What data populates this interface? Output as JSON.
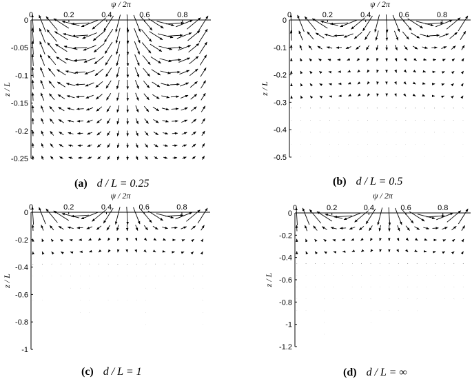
{
  "chart_data": [
    {
      "type": "quiver",
      "panel": "a",
      "caption_letter": "(a)",
      "caption_expr": "d / L = 0.25",
      "xlabel": "ψ / 2π",
      "ylabel": "z / L",
      "xlim": [
        0,
        0.95
      ],
      "ylim": [
        -0.25,
        0
      ],
      "xticks": [
        "0",
        "0.2",
        "0.4",
        "0.6",
        "0.8"
      ],
      "yticks": [
        "0",
        "-0.05",
        "-0.1",
        "-0.15",
        "-0.2",
        "-0.25"
      ],
      "xtick_values": [
        0,
        0.2,
        0.4,
        0.6,
        0.8
      ],
      "ytick_values": [
        0,
        -0.05,
        -0.1,
        -0.15,
        -0.2,
        -0.25
      ],
      "decay": "weak",
      "grid": false
    },
    {
      "type": "quiver",
      "panel": "b",
      "caption_letter": "(b)",
      "caption_expr": "d / L = 0.5",
      "xlabel": "ψ / 2π",
      "ylabel": "z / L",
      "xlim": [
        0,
        0.95
      ],
      "ylim": [
        -0.5,
        0
      ],
      "xticks": [
        "0",
        "0.2",
        "0.4",
        "0.6",
        "0.8"
      ],
      "yticks": [
        "0",
        "-0.1",
        "-0.2",
        "-0.3",
        "-0.4",
        "-0.5"
      ],
      "xtick_values": [
        0,
        0.2,
        0.4,
        0.6,
        0.8
      ],
      "ytick_values": [
        0,
        -0.1,
        -0.2,
        -0.3,
        -0.4,
        -0.5
      ],
      "decay": "moderate",
      "grid": false
    },
    {
      "type": "quiver",
      "panel": "c",
      "caption_letter": "(c)",
      "caption_expr": "d / L = 1",
      "xlabel": "ψ / 2π",
      "ylabel": "z / L",
      "xlim": [
        0,
        0.95
      ],
      "ylim": [
        -1,
        0
      ],
      "xticks": [
        "0",
        "0.2",
        "0.4",
        "0.6",
        "0.8"
      ],
      "yticks": [
        "0",
        "-0.2",
        "-0.4",
        "-0.6",
        "-0.8",
        "-1"
      ],
      "xtick_values": [
        0,
        0.2,
        0.4,
        0.6,
        0.8
      ],
      "ytick_values": [
        0,
        -0.2,
        -0.4,
        -0.6,
        -0.8,
        -1
      ],
      "decay": "strong",
      "grid": false
    },
    {
      "type": "quiver",
      "panel": "d",
      "caption_letter": "(d)",
      "caption_expr": "d / L = ∞",
      "xlabel": "ψ / 2π",
      "ylabel": "z / L",
      "xlim": [
        0,
        0.95
      ],
      "ylim": [
        -1.2,
        0
      ],
      "xticks": [
        "0",
        "0.2",
        "0.4",
        "0.6",
        "0.8"
      ],
      "yticks": [
        "0",
        "-0.2",
        "-0.4",
        "-0.6",
        "-0.8",
        "-1",
        "-1.2"
      ],
      "xtick_values": [
        0,
        0.2,
        0.4,
        0.6,
        0.8
      ],
      "ytick_values": [
        0,
        -0.2,
        -0.4,
        -0.6,
        -0.8,
        -1,
        -1.2
      ],
      "decay": "strong",
      "grid": false
    }
  ]
}
